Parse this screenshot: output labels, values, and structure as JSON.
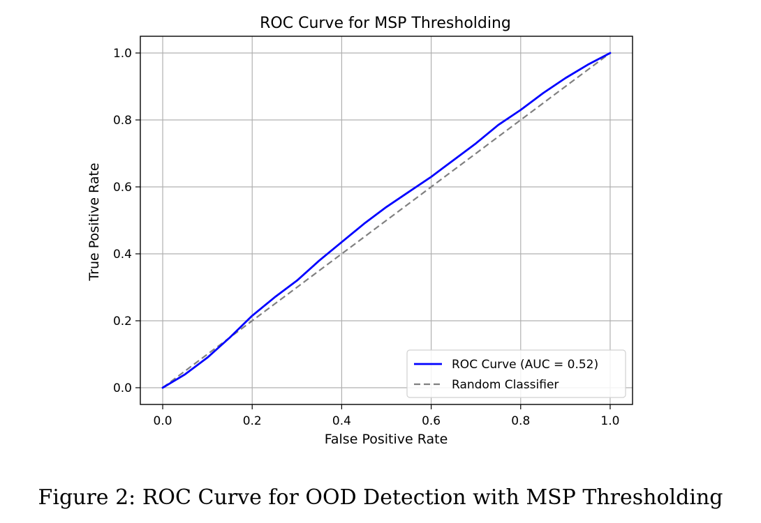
{
  "caption": "Figure 2: ROC Curve for OOD Detection with MSP Thresholding",
  "chart_data": {
    "type": "line",
    "title": "ROC Curve for MSP Thresholding",
    "xlabel": "False Positive Rate",
    "ylabel": "True Positive Rate",
    "xlim": [
      -0.05,
      1.05
    ],
    "ylim": [
      -0.05,
      1.05
    ],
    "xticks": [
      "0.0",
      "0.2",
      "0.4",
      "0.6",
      "0.8",
      "1.0"
    ],
    "yticks": [
      "0.0",
      "0.2",
      "0.4",
      "0.6",
      "0.8",
      "1.0"
    ],
    "grid": true,
    "legend_position": "lower-right",
    "series": [
      {
        "name": "ROC Curve (AUC = 0.52)",
        "color": "#0000ff",
        "style": "solid",
        "x": [
          0.0,
          0.05,
          0.1,
          0.15,
          0.2,
          0.25,
          0.3,
          0.35,
          0.4,
          0.45,
          0.5,
          0.55,
          0.6,
          0.65,
          0.7,
          0.75,
          0.8,
          0.85,
          0.9,
          0.95,
          1.0
        ],
        "y": [
          0.0,
          0.04,
          0.09,
          0.15,
          0.215,
          0.27,
          0.32,
          0.38,
          0.435,
          0.49,
          0.54,
          0.585,
          0.63,
          0.68,
          0.73,
          0.785,
          0.83,
          0.88,
          0.925,
          0.965,
          1.0
        ]
      },
      {
        "name": "Random Classifier",
        "color": "#808080",
        "style": "dashed",
        "x": [
          0.0,
          1.0
        ],
        "y": [
          0.0,
          1.0
        ]
      }
    ]
  }
}
